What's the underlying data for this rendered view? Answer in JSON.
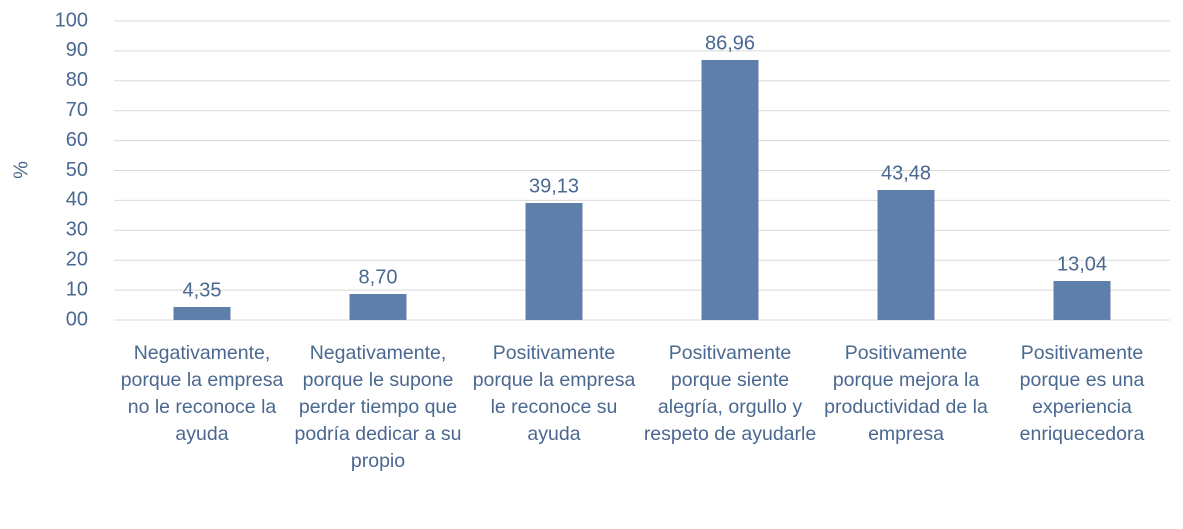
{
  "chart_data": {
    "type": "bar",
    "y_label": "%",
    "categories": [
      "Negativamente, porque la empresa no le reconoce la ayuda",
      "Negativamente, porque le supone perder tiempo que podría dedicar a su propio",
      "Positivamente porque la empresa le reconoce su ayuda",
      "Positivamente porque siente alegría, orgullo y respeto de ayudarle",
      "Positivamente porque mejora la productividad de la empresa",
      "Positivamente porque es una experiencia enriquecedora"
    ],
    "values": [
      4.35,
      8.7,
      39.13,
      86.96,
      43.48,
      13.04
    ],
    "value_labels": [
      "4,35",
      "8,70",
      "39,13",
      "86,96",
      "43,48",
      "13,04"
    ],
    "color": "#5f7fab",
    "ylim": [
      0,
      100
    ],
    "yticks": [
      {
        "value": 0,
        "label": "00"
      },
      10,
      20,
      30,
      40,
      50,
      60,
      70,
      80,
      90,
      100
    ],
    "grid": true
  }
}
